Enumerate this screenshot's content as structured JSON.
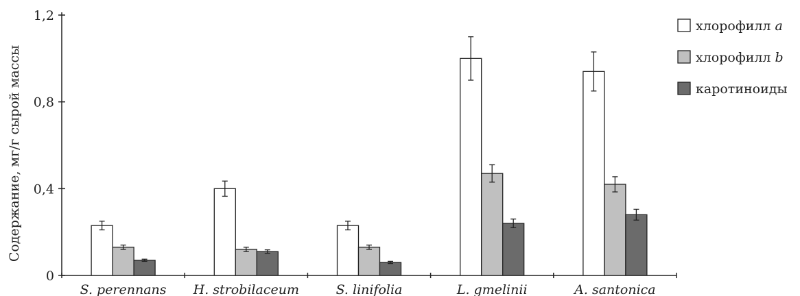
{
  "chart_data": {
    "type": "bar",
    "title": "",
    "xlabel": "",
    "ylabel": "Содержание, мг/г сырой массы",
    "ylim": [
      0,
      1.2
    ],
    "yticks": [
      0,
      0.4,
      0.8,
      1.2
    ],
    "ytick_labels": [
      "0",
      "0,4",
      "0,8",
      "1,2"
    ],
    "categories": [
      "S. perennans",
      "H. strobilaceum",
      "S. linifolia",
      "L. gmelinii",
      "A. santonica"
    ],
    "legend_position": "top-right",
    "grid": false,
    "error_bars": true,
    "series": [
      {
        "name": "хлорофилл a",
        "name_prefix": "хлорофилл ",
        "name_suffix": "a",
        "color": "#ffffff",
        "values": [
          0.23,
          0.4,
          0.23,
          1.0,
          0.94
        ],
        "errors": [
          0.02,
          0.035,
          0.02,
          0.1,
          0.09
        ]
      },
      {
        "name": "хлорофилл b",
        "name_prefix": "хлорофилл ",
        "name_suffix": "b",
        "color": "#c0c0c0",
        "values": [
          0.13,
          0.12,
          0.13,
          0.47,
          0.42
        ],
        "errors": [
          0.01,
          0.01,
          0.01,
          0.04,
          0.035
        ]
      },
      {
        "name": "каротиноиды",
        "name_prefix": "каротиноиды",
        "name_suffix": "",
        "color": "#6b6b6b",
        "values": [
          0.07,
          0.11,
          0.06,
          0.24,
          0.28
        ],
        "errors": [
          0.005,
          0.008,
          0.005,
          0.02,
          0.025
        ]
      }
    ]
  }
}
